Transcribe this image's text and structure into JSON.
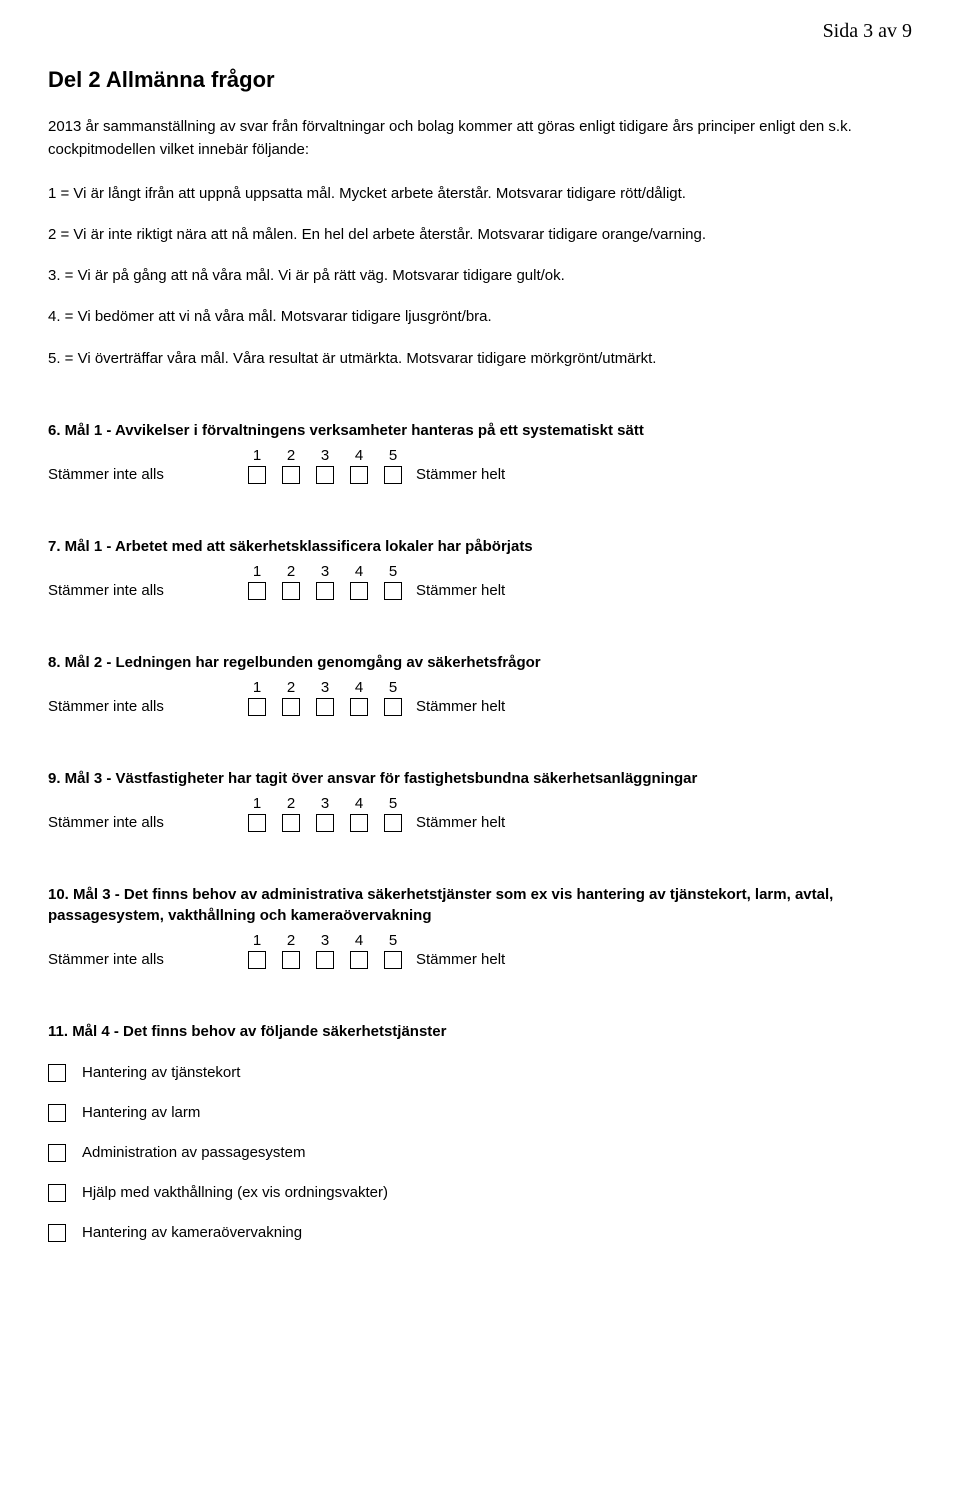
{
  "page_indicator": "Sida 3 av 9",
  "section_title": "Del 2 Allmänna frågor",
  "intro_lead": "2013 år sammanställning av svar från förvaltningar och bolag kommer att göras enligt tidigare års principer enligt den s.k. cockpitmodellen vilket innebär följande:",
  "intro_items": [
    "1 = Vi är långt ifrån att uppnå uppsatta mål. Mycket arbete återstår. Motsvarar tidigare rött/dåligt.",
    "2 = Vi är inte riktigt nära att nå målen. En hel del arbete återstår. Motsvarar tidigare orange/varning.",
    "3. = Vi är på gång att nå våra mål. Vi är på rätt väg. Motsvarar tidigare gult/ok.",
    "4. = Vi bedömer att vi nå våra mål. Motsvarar tidigare ljusgrönt/bra.",
    "5. = Vi överträffar våra mål. Våra resultat är utmärkta. Motsvarar tidigare mörkgrönt/utmärkt."
  ],
  "scale": {
    "left": "Stämmer inte alls",
    "right": "Stämmer helt",
    "numbers": [
      "1",
      "2",
      "3",
      "4",
      "5"
    ]
  },
  "questions": [
    {
      "text": "6. Mål 1 - Avvikelser i förvaltningens verksamheter hanteras på ett systematiskt sätt"
    },
    {
      "text": "7. Mål 1 - Arbetet med att säkerhetsklassificera lokaler har påbörjats"
    },
    {
      "text": "8. Mål 2 - Ledningen har regelbunden genomgång av säkerhetsfrågor"
    },
    {
      "text": "9. Mål 3 - Västfastigheter har tagit över ansvar för fastighetsbundna säkerhetsanläggningar"
    },
    {
      "text": "10. Mål 3 - Det finns behov av administrativa säkerhetstjänster som ex vis hantering av tjänstekort, larm, avtal, passagesystem, vakthållning och kameraövervakning"
    }
  ],
  "q11": {
    "text": "11. Mål 4 - Det finns behov av följande säkerhetstjänster",
    "options": [
      "Hantering av tjänstekort",
      "Hantering av larm",
      "Administration av passagesystem",
      "Hjälp med vakthållning (ex vis ordningsvakter)",
      "Hantering av kameraövervakning"
    ]
  }
}
